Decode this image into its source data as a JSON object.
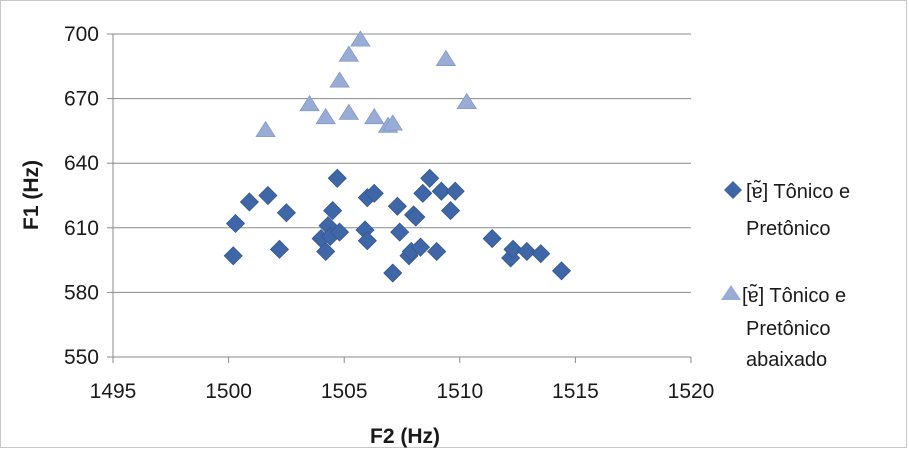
{
  "chart_data": {
    "type": "scatter",
    "xlabel": "F2 (Hz)",
    "ylabel": "F1 (Hz)",
    "xlim": [
      1495,
      1520
    ],
    "ylim": [
      550,
      700
    ],
    "x_ticks": [
      "1495",
      "1500",
      "1505",
      "1510",
      "1515",
      "1520"
    ],
    "y_ticks": [
      "550",
      "580",
      "610",
      "640",
      "670",
      "700"
    ],
    "grid": "horizontal",
    "legend_position": "right",
    "series": [
      {
        "name_lines": [
          "[ɐ̃] Tônico e",
          "Pretônico"
        ],
        "marker": "diamond",
        "color": "#3f67a8",
        "points": [
          [
            1500.2,
            597
          ],
          [
            1500.3,
            612
          ],
          [
            1500.9,
            622
          ],
          [
            1501.7,
            625
          ],
          [
            1502.2,
            600
          ],
          [
            1502.5,
            617
          ],
          [
            1504.0,
            605
          ],
          [
            1504.2,
            599
          ],
          [
            1504.3,
            611
          ],
          [
            1504.4,
            606
          ],
          [
            1504.5,
            618
          ],
          [
            1504.7,
            633
          ],
          [
            1504.8,
            608
          ],
          [
            1505.9,
            609
          ],
          [
            1506.0,
            624
          ],
          [
            1506.0,
            604
          ],
          [
            1506.3,
            626
          ],
          [
            1507.1,
            589
          ],
          [
            1507.3,
            620
          ],
          [
            1507.4,
            608
          ],
          [
            1507.8,
            597
          ],
          [
            1507.9,
            599
          ],
          [
            1508.0,
            616
          ],
          [
            1508.1,
            615
          ],
          [
            1508.3,
            601
          ],
          [
            1508.4,
            626
          ],
          [
            1508.7,
            633
          ],
          [
            1509.0,
            599
          ],
          [
            1509.2,
            627
          ],
          [
            1509.6,
            618
          ],
          [
            1509.8,
            627
          ],
          [
            1511.4,
            605
          ],
          [
            1512.2,
            596
          ],
          [
            1512.3,
            600
          ],
          [
            1512.9,
            599
          ],
          [
            1513.5,
            598
          ],
          [
            1514.4,
            590
          ]
        ]
      },
      {
        "name_lines": [
          "[ɐ̃] Tônico e",
          "Pretônico",
          "abaixado"
        ],
        "marker": "triangle",
        "color": "#98acd6",
        "points": [
          [
            1501.6,
            655
          ],
          [
            1503.5,
            667
          ],
          [
            1504.2,
            661
          ],
          [
            1504.8,
            678
          ],
          [
            1505.2,
            663
          ],
          [
            1505.2,
            690
          ],
          [
            1505.7,
            697
          ],
          [
            1506.3,
            661
          ],
          [
            1506.9,
            657
          ],
          [
            1507.1,
            658
          ],
          [
            1509.4,
            688
          ],
          [
            1510.3,
            668
          ]
        ]
      }
    ]
  }
}
